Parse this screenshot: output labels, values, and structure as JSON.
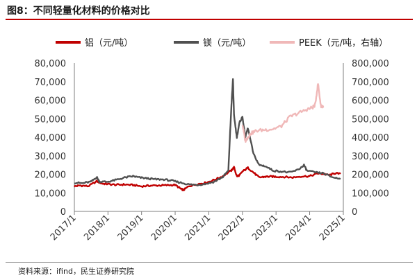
{
  "figure": {
    "title": "图8：不同轻量化材料的价格对比",
    "source": "资料来源：ifind，民生证券研究院"
  },
  "chart_data": {
    "type": "line",
    "x_type": "date",
    "x_ticks": [
      "2017/1",
      "2018/1",
      "2019/1",
      "2020/1",
      "2021/1",
      "2022/1",
      "2023/1",
      "2024/1",
      "2025/1"
    ],
    "y_left": {
      "ticks": [
        "0",
        "10,000",
        "20,000",
        "30,000",
        "40,000",
        "50,000",
        "60,000",
        "70,000",
        "80,000"
      ],
      "ylim": [
        0,
        80000
      ]
    },
    "y_right": {
      "ticks": [
        "0",
        "100,000",
        "200,000",
        "300,000",
        "400,000",
        "500,000",
        "600,000",
        "700,000",
        "800,000"
      ],
      "ylim": [
        0,
        800000
      ]
    },
    "legend_position": "top",
    "grid": false,
    "series": [
      {
        "name": "铝（元/吨）",
        "axis": "left",
        "color": "#c00000",
        "points": [
          [
            "2017-01",
            13500
          ],
          [
            "2017-03",
            14000
          ],
          [
            "2017-06",
            13600
          ],
          [
            "2017-09",
            16200
          ],
          [
            "2017-11",
            15000
          ],
          [
            "2018-01",
            14700
          ],
          [
            "2018-04",
            14300
          ],
          [
            "2018-07",
            14500
          ],
          [
            "2018-10",
            14200
          ],
          [
            "2019-01",
            13500
          ],
          [
            "2019-04",
            13900
          ],
          [
            "2019-07",
            14000
          ],
          [
            "2019-10",
            14100
          ],
          [
            "2020-01",
            14300
          ],
          [
            "2020-03",
            12200
          ],
          [
            "2020-04",
            11500
          ],
          [
            "2020-06",
            13700
          ],
          [
            "2020-09",
            14700
          ],
          [
            "2020-12",
            15500
          ],
          [
            "2021-03",
            17000
          ],
          [
            "2021-06",
            19000
          ],
          [
            "2021-09",
            22000
          ],
          [
            "2021-10",
            23800
          ],
          [
            "2021-11",
            19000
          ],
          [
            "2021-12",
            19500
          ],
          [
            "2022-01",
            21500
          ],
          [
            "2022-03",
            23500
          ],
          [
            "2022-05",
            21000
          ],
          [
            "2022-07",
            18300
          ],
          [
            "2022-09",
            18700
          ],
          [
            "2022-11",
            18800
          ],
          [
            "2023-01",
            18700
          ],
          [
            "2023-04",
            18600
          ],
          [
            "2023-07",
            18300
          ],
          [
            "2023-10",
            18900
          ],
          [
            "2024-01",
            19000
          ],
          [
            "2024-04",
            20500
          ],
          [
            "2024-06",
            20200
          ],
          [
            "2024-08",
            19500
          ],
          [
            "2024-10",
            20600
          ],
          [
            "2024-12",
            20200
          ]
        ]
      },
      {
        "name": "镁（元/吨）",
        "axis": "left",
        "color": "#505050",
        "points": [
          [
            "2017-01",
            15500
          ],
          [
            "2017-04",
            15200
          ],
          [
            "2017-07",
            16000
          ],
          [
            "2017-09",
            18500
          ],
          [
            "2017-10",
            16000
          ],
          [
            "2018-01",
            16000
          ],
          [
            "2018-04",
            17000
          ],
          [
            "2018-07",
            18200
          ],
          [
            "2018-10",
            19000
          ],
          [
            "2018-12",
            18300
          ],
          [
            "2019-03",
            17800
          ],
          [
            "2019-06",
            17300
          ],
          [
            "2019-09",
            17200
          ],
          [
            "2019-12",
            16500
          ],
          [
            "2020-03",
            15500
          ],
          [
            "2020-06",
            14500
          ],
          [
            "2020-09",
            14300
          ],
          [
            "2020-12",
            14900
          ],
          [
            "2021-03",
            16000
          ],
          [
            "2021-06",
            18500
          ],
          [
            "2021-08",
            22000
          ],
          [
            "2021-09",
            55000
          ],
          [
            "2021-09-20",
            71500
          ],
          [
            "2021-10",
            52000
          ],
          [
            "2021-11",
            40000
          ],
          [
            "2021-12",
            48000
          ],
          [
            "2022-01",
            51000
          ],
          [
            "2022-02",
            40000
          ],
          [
            "2022-03",
            45000
          ],
          [
            "2022-05",
            31000
          ],
          [
            "2022-07",
            25000
          ],
          [
            "2022-09",
            24500
          ],
          [
            "2022-12",
            22000
          ],
          [
            "2023-03",
            21500
          ],
          [
            "2023-06",
            21000
          ],
          [
            "2023-09",
            22500
          ],
          [
            "2023-11",
            25000
          ],
          [
            "2023-12",
            22000
          ],
          [
            "2024-03",
            21000
          ],
          [
            "2024-06",
            20500
          ],
          [
            "2024-09",
            18500
          ],
          [
            "2024-12",
            17500
          ]
        ]
      },
      {
        "name": "PEEK（元/吨，右轴）",
        "axis": "right",
        "color": "#f0b8b8",
        "points": [
          [
            "2022-01",
            470000
          ],
          [
            "2022-02",
            380000
          ],
          [
            "2022-03",
            400000
          ],
          [
            "2022-04",
            420000
          ],
          [
            "2022-06",
            435000
          ],
          [
            "2022-09",
            440000
          ],
          [
            "2022-12",
            445000
          ],
          [
            "2023-03",
            460000
          ],
          [
            "2023-06",
            510000
          ],
          [
            "2023-09",
            530000
          ],
          [
            "2023-12",
            550000
          ],
          [
            "2024-02",
            560000
          ],
          [
            "2024-03",
            575000
          ],
          [
            "2024-04",
            690000
          ],
          [
            "2024-05",
            570000
          ],
          [
            "2024-06",
            565000
          ]
        ]
      }
    ]
  }
}
